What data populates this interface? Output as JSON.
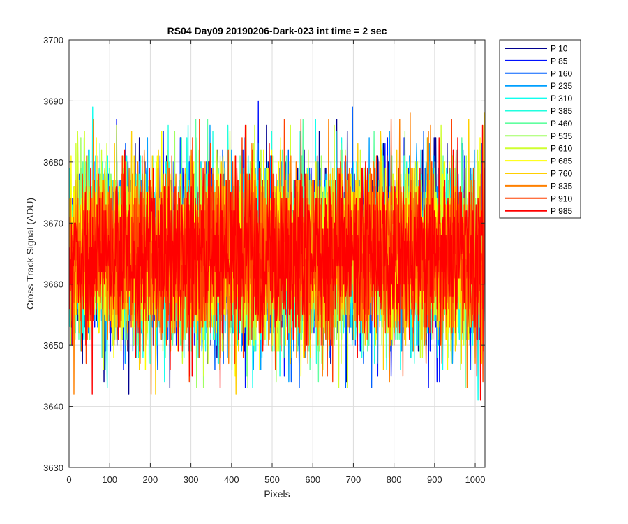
{
  "chart_data": {
    "type": "line",
    "title": "RS04 Day09 20190206-Dark-023 int time = 2 sec",
    "xlabel": "Pixels",
    "ylabel": "Cross Track Signal (ADU)",
    "xlim": [
      0,
      1024
    ],
    "ylim": [
      3630,
      3700
    ],
    "xticks": [
      0,
      100,
      200,
      300,
      400,
      500,
      600,
      700,
      800,
      900,
      1000
    ],
    "yticks": [
      3630,
      3640,
      3650,
      3660,
      3670,
      3680,
      3690,
      3700
    ],
    "grid": true,
    "legend_placement": "outside-top-right",
    "x_range_points": [
      1,
      1024
    ],
    "signal_level_adu": 3665,
    "series": [
      {
        "name": "P 10",
        "color": "#00008f",
        "min": 3642,
        "max": 3690
      },
      {
        "name": "P 85",
        "color": "#0010ff",
        "min": 3643,
        "max": 3690
      },
      {
        "name": "P 160",
        "color": "#0060ff",
        "min": 3643,
        "max": 3689
      },
      {
        "name": "P 235",
        "color": "#00a0ff",
        "min": 3640,
        "max": 3690
      },
      {
        "name": "P 310",
        "color": "#10ffef",
        "min": 3637,
        "max": 3690
      },
      {
        "name": "P 385",
        "color": "#20ffdf",
        "min": 3639,
        "max": 3688
      },
      {
        "name": "P 460",
        "color": "#60ff9f",
        "min": 3638,
        "max": 3687
      },
      {
        "name": "P 535",
        "color": "#9fff60",
        "min": 3639,
        "max": 3688
      },
      {
        "name": "P 610",
        "color": "#cfff30",
        "min": 3641,
        "max": 3686
      },
      {
        "name": "P 685",
        "color": "#ffff00",
        "min": 3643,
        "max": 3691
      },
      {
        "name": "P 760",
        "color": "#ffcf00",
        "min": 3641,
        "max": 3690
      },
      {
        "name": "P 835",
        "color": "#ff8000",
        "min": 3637,
        "max": 3688
      },
      {
        "name": "P 910",
        "color": "#ff4000",
        "min": 3642,
        "max": 3687
      },
      {
        "name": "P 985",
        "color": "#ff0000",
        "min": 3639,
        "max": 3686
      }
    ]
  }
}
